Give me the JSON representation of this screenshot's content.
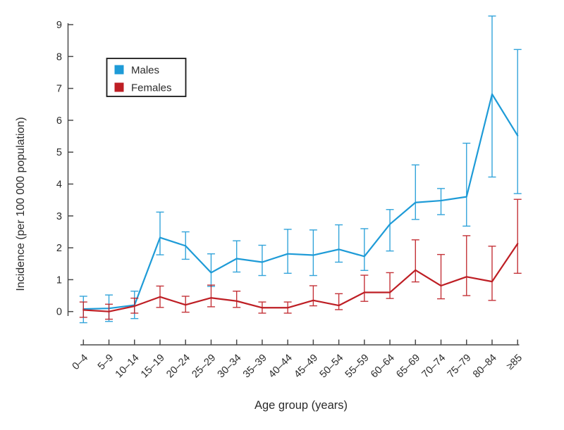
{
  "chart_data": {
    "type": "line",
    "title": "",
    "xlabel": "Age group (years)",
    "ylabel": "Incidence (per 100 000 population)",
    "categories": [
      "0–4",
      "5–9",
      "10–14",
      "15–19",
      "20–24",
      "25–29",
      "30–34",
      "35–39",
      "40–44",
      "45–49",
      "50–54",
      "55–59",
      "60–64",
      "65–69",
      "70–74",
      "75–79",
      "80–84",
      "≥85"
    ],
    "y_ticks": [
      0,
      1,
      2,
      3,
      4,
      5,
      6,
      7,
      8,
      9
    ],
    "ylim": [
      -0.5,
      9.5
    ],
    "grid": false,
    "legend_position": "upper-left-inside",
    "error_bars": true,
    "series": [
      {
        "name": "Males",
        "color": "#1E9BD7",
        "values": [
          0.08,
          0.1,
          0.2,
          2.32,
          2.06,
          1.22,
          1.66,
          1.55,
          1.81,
          1.77,
          1.95,
          1.73,
          2.74,
          3.42,
          3.48,
          3.6,
          6.82,
          5.52
        ],
        "ci_low": [
          -0.35,
          -0.31,
          -0.22,
          1.78,
          1.64,
          0.79,
          1.24,
          1.13,
          1.2,
          1.13,
          1.55,
          1.29,
          1.9,
          2.89,
          3.04,
          2.68,
          4.22,
          3.7
        ],
        "ci_high": [
          0.48,
          0.52,
          0.64,
          3.12,
          2.5,
          1.81,
          2.22,
          2.08,
          2.58,
          2.56,
          2.72,
          2.6,
          3.2,
          4.6,
          3.86,
          5.28,
          9.27,
          8.22
        ]
      },
      {
        "name": "Females",
        "color": "#BE1E24",
        "values": [
          0.05,
          0.0,
          0.17,
          0.46,
          0.21,
          0.43,
          0.33,
          0.12,
          0.12,
          0.35,
          0.19,
          0.6,
          0.6,
          1.3,
          0.81,
          1.09,
          0.94,
          2.13
        ],
        "ci_low": [
          -0.18,
          -0.24,
          -0.05,
          0.13,
          -0.02,
          0.15,
          0.13,
          -0.05,
          -0.05,
          0.18,
          0.06,
          0.32,
          0.41,
          0.93,
          0.4,
          0.5,
          0.35,
          1.2
        ],
        "ci_high": [
          0.3,
          0.23,
          0.42,
          0.8,
          0.48,
          0.83,
          0.64,
          0.3,
          0.3,
          0.81,
          0.56,
          1.14,
          1.22,
          2.25,
          1.79,
          2.38,
          2.05,
          3.52
        ]
      }
    ]
  }
}
